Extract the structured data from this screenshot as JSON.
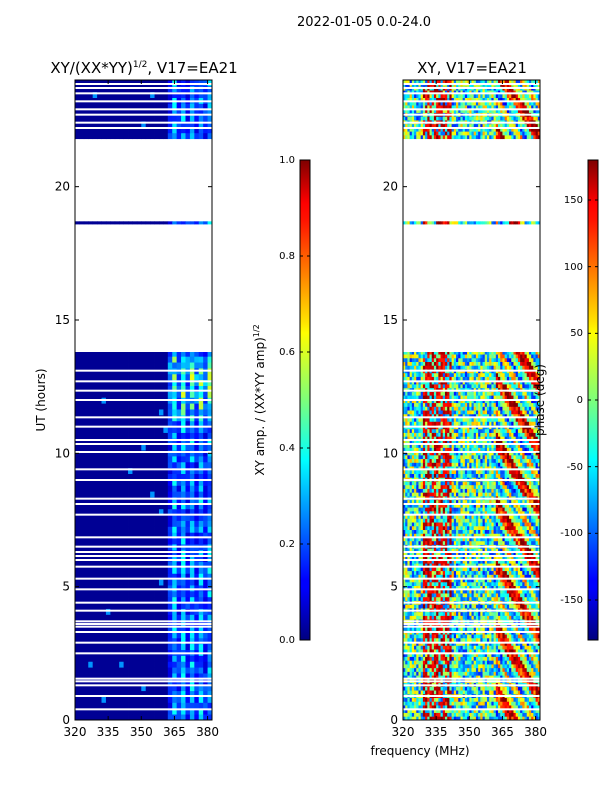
{
  "suptitle": "2022-01-05 0.0-24.0",
  "colors": {
    "white_gap": "#ffffff",
    "frame": "#000000"
  },
  "chart_data": [
    {
      "type": "heatmap",
      "title": "XY/(XX*YY)",
      "title_superscript": "1/2",
      "title_suffix": ", V17=EA21",
      "xlabel": "",
      "ylabel": "UT (hours)",
      "xlim": [
        320,
        382
      ],
      "ylim": [
        0,
        24
      ],
      "xticks": [
        "320",
        "335",
        "350",
        "365",
        "380"
      ],
      "yticks": [
        "0",
        "5",
        "10",
        "15",
        "20"
      ],
      "colorbar": {
        "label": "XY amp. / (XX*YY amp)",
        "label_superscript": "1/2",
        "range": [
          0.0,
          1.0
        ],
        "ticks": [
          "0.0",
          "0.2",
          "0.4",
          "0.6",
          "0.8",
          "1.0"
        ],
        "colormap": "jet"
      },
      "pattern": "amplitude"
    },
    {
      "type": "heatmap",
      "title": "XY, V17=EA21",
      "xlabel": "frequency (MHz)",
      "ylabel": "",
      "xlim": [
        320,
        382
      ],
      "ylim": [
        0,
        24
      ],
      "xticks": [
        "320",
        "335",
        "350",
        "365",
        "380"
      ],
      "yticks": [
        "0",
        "5",
        "10",
        "15",
        "20"
      ],
      "colorbar": {
        "label": "phase (deg)",
        "range": [
          -180,
          180
        ],
        "ticks": [
          "-150",
          "-100",
          "-50",
          "0",
          "50",
          "100",
          "150"
        ],
        "colormap": "jet"
      },
      "pattern": "phase"
    }
  ],
  "data_ranges_hours": [
    [
      0.0,
      13.8
    ],
    [
      18.6,
      18.7
    ],
    [
      21.8,
      24.0
    ]
  ],
  "gaps_hours": [
    0.4,
    0.9,
    1.3,
    1.45,
    1.55,
    2.5,
    2.9,
    3.3,
    3.5,
    3.6,
    3.7,
    4.1,
    4.4,
    4.9,
    5.3,
    5.75,
    6.0,
    6.15,
    6.3,
    6.5,
    6.85,
    7.7,
    8.1,
    8.3,
    9.0,
    9.4,
    10.05,
    10.35,
    10.5,
    11.0,
    11.35,
    12.0,
    12.35,
    12.7,
    13.1,
    22.2,
    22.4,
    22.7,
    22.9,
    23.2,
    23.5,
    23.7,
    23.85
  ]
}
